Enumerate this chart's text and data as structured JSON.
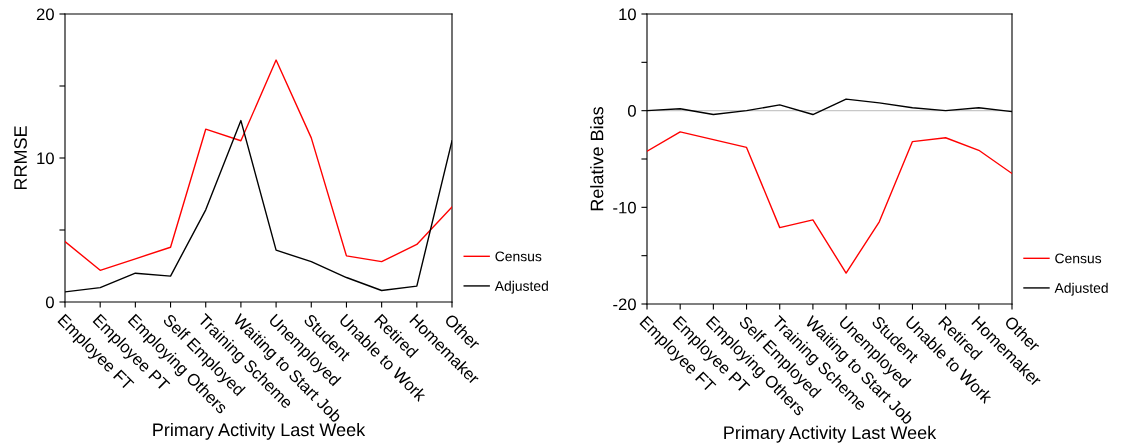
{
  "chart_data": [
    {
      "type": "line",
      "ylabel": "RRMSE",
      "xlabel": "Primary Activity Last Week",
      "categories": [
        "Employee FT",
        "Employee PT",
        "Employing Others",
        "Self Employed",
        "Training Scheme",
        "Waiting to Start Job",
        "Unemployed",
        "Student",
        "Unable to Work",
        "Retired",
        "Homemaker",
        "Other"
      ],
      "series": [
        {
          "name": "Census",
          "color": "#ff0000",
          "values": [
            4.2,
            2.2,
            3.0,
            3.8,
            12.0,
            11.2,
            16.8,
            11.4,
            3.2,
            2.8,
            4.0,
            6.6
          ]
        },
        {
          "name": "Adjusted",
          "color": "#000000",
          "values": [
            0.7,
            1.0,
            2.0,
            1.8,
            6.4,
            12.6,
            3.6,
            2.8,
            1.7,
            0.8,
            1.1,
            11.2
          ]
        }
      ],
      "ylim": [
        0,
        20
      ],
      "yticks": [
        0,
        {
          "value": 5,
          "label": null
        },
        10,
        {
          "value": 15,
          "label": null
        },
        20
      ],
      "grid": false,
      "legend": "right",
      "line_style": "solid",
      "marker": "none"
    },
    {
      "type": "line",
      "ylabel": "Relative Bias",
      "xlabel": "Primary Activity Last Week",
      "categories": [
        "Employee FT",
        "Employee PT",
        "Employing Others",
        "Self Employed",
        "Training Scheme",
        "Waiting to Start Job",
        "Unemployed",
        "Student",
        "Unable to Work",
        "Retired",
        "Homemaker",
        "Other"
      ],
      "series": [
        {
          "name": "Census",
          "color": "#ff0000",
          "values": [
            -4.2,
            -2.2,
            -3.0,
            -3.8,
            -12.1,
            -11.3,
            -16.8,
            -11.5,
            -3.2,
            -2.8,
            -4.1,
            -6.5
          ]
        },
        {
          "name": "Adjusted",
          "color": "#000000",
          "values": [
            0.0,
            0.2,
            -0.4,
            0.0,
            0.6,
            -0.4,
            1.2,
            0.8,
            0.3,
            0.0,
            0.3,
            -0.1
          ]
        }
      ],
      "ylim": [
        -20,
        10
      ],
      "yticks": [
        -20,
        {
          "value": -15,
          "label": null
        },
        -10,
        {
          "value": -5,
          "label": null
        },
        0,
        {
          "value": 5,
          "label": null
        },
        10
      ],
      "ref_lines": [
        {
          "axis": "y",
          "value": 0,
          "color": "#c8c8c8"
        }
      ],
      "grid": false,
      "legend": "right",
      "line_style": "solid",
      "marker": "none"
    }
  ]
}
